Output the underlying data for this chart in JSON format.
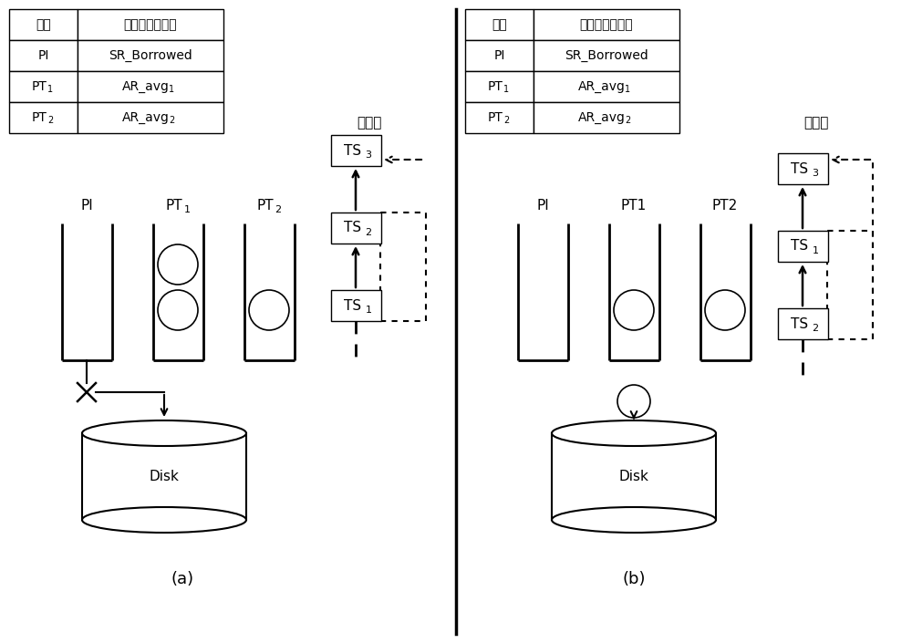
{
  "fig_width": 10.0,
  "fig_height": 7.05,
  "bg_color": "#ffffff",
  "title_a": "(a)",
  "title_b": "(b)",
  "table_headers": [
    "应用",
    "预分配服务速率"
  ],
  "table_rows_col1": [
    "PI",
    "PT",
    "PT"
  ],
  "table_rows_col1_sub": [
    "",
    "1",
    "2"
  ],
  "table_rows_col2": [
    "SR_Borrowed",
    "AR_avg",
    "AR_avg"
  ],
  "table_rows_col2_sub": [
    "",
    "1",
    "2"
  ],
  "ts_label": "时间戳",
  "disk_label": "Disk"
}
